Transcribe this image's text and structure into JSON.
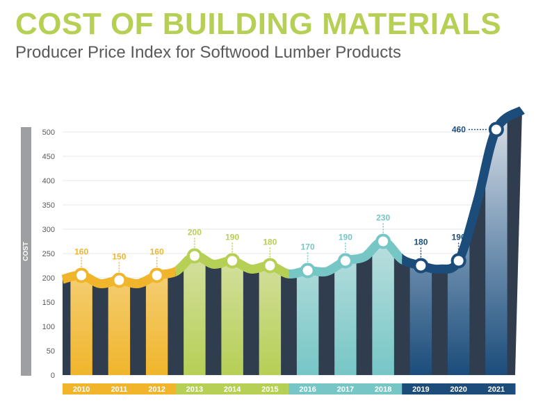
{
  "header": {
    "title": "COST OF BUILDING MATERIALS",
    "subtitle": "Producer Price Index for Softwood Lumber Products"
  },
  "chart_data": {
    "type": "area",
    "title": "COST OF BUILDING MATERIALS",
    "subtitle": "Producer Price Index for Softwood Lumber Products",
    "xlabel": "",
    "ylabel": "COST",
    "ylim": [
      0,
      500
    ],
    "yticks": [
      0,
      50,
      100,
      150,
      200,
      250,
      300,
      350,
      400,
      450,
      500
    ],
    "grid": true,
    "categories": [
      "2010",
      "2011",
      "2012",
      "2013",
      "2014",
      "2015",
      "2016",
      "2017",
      "2018",
      "2019",
      "2020",
      "2021"
    ],
    "values": [
      160,
      150,
      160,
      200,
      190,
      180,
      170,
      190,
      230,
      180,
      190,
      460
    ],
    "year_colors": [
      "#f0b52b",
      "#f0b52b",
      "#f0b52b",
      "#b6cf55",
      "#b6cf55",
      "#b6cf55",
      "#76c6c6",
      "#76c6c6",
      "#76c6c6",
      "#1b4c7a",
      "#1b4c7a",
      "#1b4c7a"
    ],
    "colors": {
      "band": "#2f3d4e",
      "gold": "#f0b52b",
      "green": "#b6cf55",
      "teal": "#76c6c6",
      "navy": "#1b4c7a",
      "axis_bar": "#9d9fa2"
    }
  }
}
